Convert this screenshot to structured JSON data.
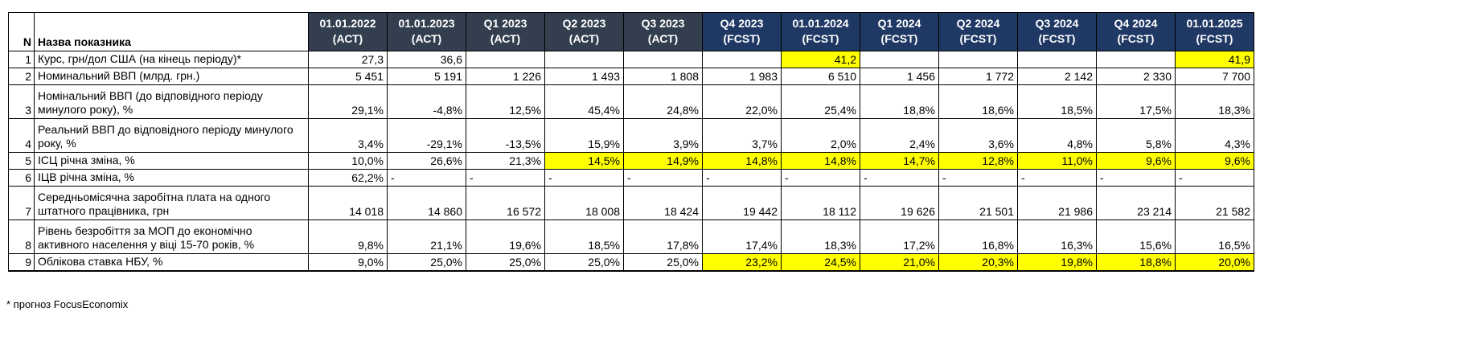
{
  "colors": {
    "act_header_bg": "#333F4F",
    "fcst_header_bg": "#1F3864",
    "header_text": "#FFFFFF",
    "highlight": "#FFFF00",
    "grid_border": "#000000"
  },
  "footnote": "* прогноз FocusEconomix",
  "table": {
    "corner": {
      "n_label": "N",
      "name_label": "Назва показника"
    },
    "columns": [
      {
        "line1": "01.01.2022",
        "line2": "(АСТ)",
        "phase": "act"
      },
      {
        "line1": "01.01.2023",
        "line2": "(АСТ)",
        "phase": "act"
      },
      {
        "line1": "Q1 2023",
        "line2": "(АСТ)",
        "phase": "act"
      },
      {
        "line1": "Q2 2023",
        "line2": "(АСТ)",
        "phase": "act"
      },
      {
        "line1": "Q3 2023",
        "line2": "(АСТ)",
        "phase": "act"
      },
      {
        "line1": "Q4 2023",
        "line2": "(FCST)",
        "phase": "fcst"
      },
      {
        "line1": "01.01.2024",
        "line2": "(FCST)",
        "phase": "fcst"
      },
      {
        "line1": "Q1 2024",
        "line2": "(FCST)",
        "phase": "fcst"
      },
      {
        "line1": "Q2 2024",
        "line2": "(FCST)",
        "phase": "fcst"
      },
      {
        "line1": "Q3 2024",
        "line2": "(FCST)",
        "phase": "fcst"
      },
      {
        "line1": "Q4 2024",
        "line2": "(FCST)",
        "phase": "fcst"
      },
      {
        "line1": "01.01.2025",
        "line2": "(FCST)",
        "phase": "fcst"
      }
    ],
    "rows": [
      {
        "n": "1",
        "name": "Курс, грн/дол США (на кінець періоду)*",
        "tall": false,
        "values": [
          "27,3",
          "36,6",
          "",
          "",
          "",
          "",
          "41,2",
          "",
          "",
          "",
          "",
          "41,9"
        ],
        "highlight": [
          6,
          11
        ]
      },
      {
        "n": "2",
        "name": "Номинальний ВВП (млрд. грн.)",
        "tall": false,
        "values": [
          "5 451",
          "5 191",
          "1 226",
          "1 493",
          "1 808",
          "1 983",
          "6 510",
          "1 456",
          "1 772",
          "2 142",
          "2 330",
          "7 700"
        ],
        "highlight": []
      },
      {
        "n": "3",
        "name": "Номінальний ВВП (до відповідного періоду минулого року), %",
        "tall": true,
        "values": [
          "29,1%",
          "-4,8%",
          "12,5%",
          "45,4%",
          "24,8%",
          "22,0%",
          "25,4%",
          "18,8%",
          "18,6%",
          "18,5%",
          "17,5%",
          "18,3%"
        ],
        "highlight": []
      },
      {
        "n": "4",
        "name": "Реальний ВВП до відповідного періоду минулого року, %",
        "tall": true,
        "values": [
          "3,4%",
          "-29,1%",
          "-13,5%",
          "15,9%",
          "3,9%",
          "3,7%",
          "2,0%",
          "2,4%",
          "3,6%",
          "4,8%",
          "5,8%",
          "4,3%"
        ],
        "highlight": []
      },
      {
        "n": "5",
        "name": "ІСЦ річна зміна, %",
        "tall": false,
        "values": [
          "10,0%",
          "26,6%",
          "21,3%",
          "14,5%",
          "14,9%",
          "14,8%",
          "14,8%",
          "14,7%",
          "12,8%",
          "11,0%",
          "9,6%",
          "9,6%"
        ],
        "highlight": [
          3,
          4,
          5,
          6,
          7,
          8,
          9,
          10,
          11
        ]
      },
      {
        "n": "6",
        "name": "ІЦВ річна зміна, %",
        "tall": false,
        "values": [
          "62,2%",
          "-",
          "-",
          "-",
          "-",
          "-",
          "-",
          "-",
          "-",
          "-",
          "-",
          "-"
        ],
        "highlight": []
      },
      {
        "n": "7",
        "name": "Середньомісячна заробітна плата на одного штатного працівника, грн",
        "tall": true,
        "values": [
          "14 018",
          "14 860",
          "16 572",
          "18 008",
          "18 424",
          "19 442",
          "18 112",
          "19 626",
          "21 501",
          "21 986",
          "23 214",
          "21 582"
        ],
        "highlight": []
      },
      {
        "n": "8",
        "name": "Рівень безробіття за МОП до економічно активного населення у віці 15-70 років, %",
        "tall": true,
        "values": [
          "9,8%",
          "21,1%",
          "19,6%",
          "18,5%",
          "17,8%",
          "17,4%",
          "18,3%",
          "17,2%",
          "16,8%",
          "16,3%",
          "15,6%",
          "16,5%"
        ],
        "highlight": []
      },
      {
        "n": "9",
        "name": "Облікова ставка НБУ, %",
        "tall": false,
        "values": [
          "9,0%",
          "25,0%",
          "25,0%",
          "25,0%",
          "25,0%",
          "23,2%",
          "24,5%",
          "21,0%",
          "20,3%",
          "19,8%",
          "18,8%",
          "20,0%"
        ],
        "highlight": [
          5,
          6,
          7,
          8,
          9,
          10,
          11
        ]
      }
    ]
  }
}
